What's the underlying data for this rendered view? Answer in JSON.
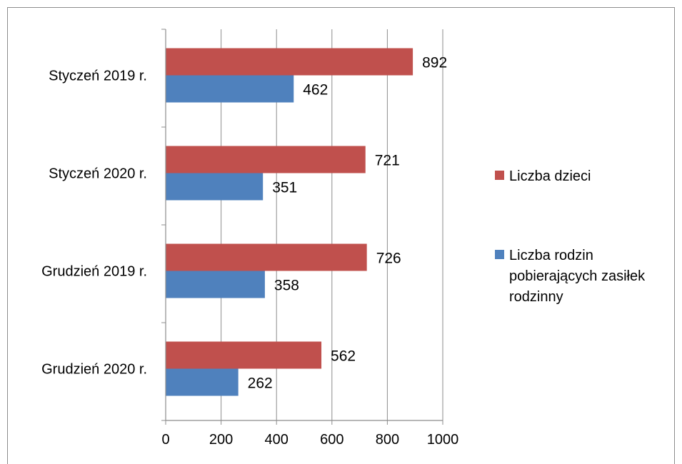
{
  "chart_data": {
    "type": "bar",
    "orientation": "horizontal",
    "categories": [
      "Styczeń 2019 r.",
      "Styczeń 2020 r.",
      "Grudzień 2019 r.",
      "Grudzień 2020 r."
    ],
    "series": [
      {
        "name": "Liczba dzieci",
        "color": "#c0504d",
        "values": [
          892,
          721,
          726,
          562
        ]
      },
      {
        "name": "Liczba rodzin pobierających zasiłek rodzinny",
        "color": "#4f81bd",
        "values": [
          462,
          351,
          358,
          262
        ]
      }
    ],
    "xlim": [
      0,
      1000
    ],
    "x_ticks": [
      0,
      200,
      400,
      600,
      800,
      1000
    ],
    "grid": true,
    "legend_position": "right",
    "data_labels": true
  }
}
